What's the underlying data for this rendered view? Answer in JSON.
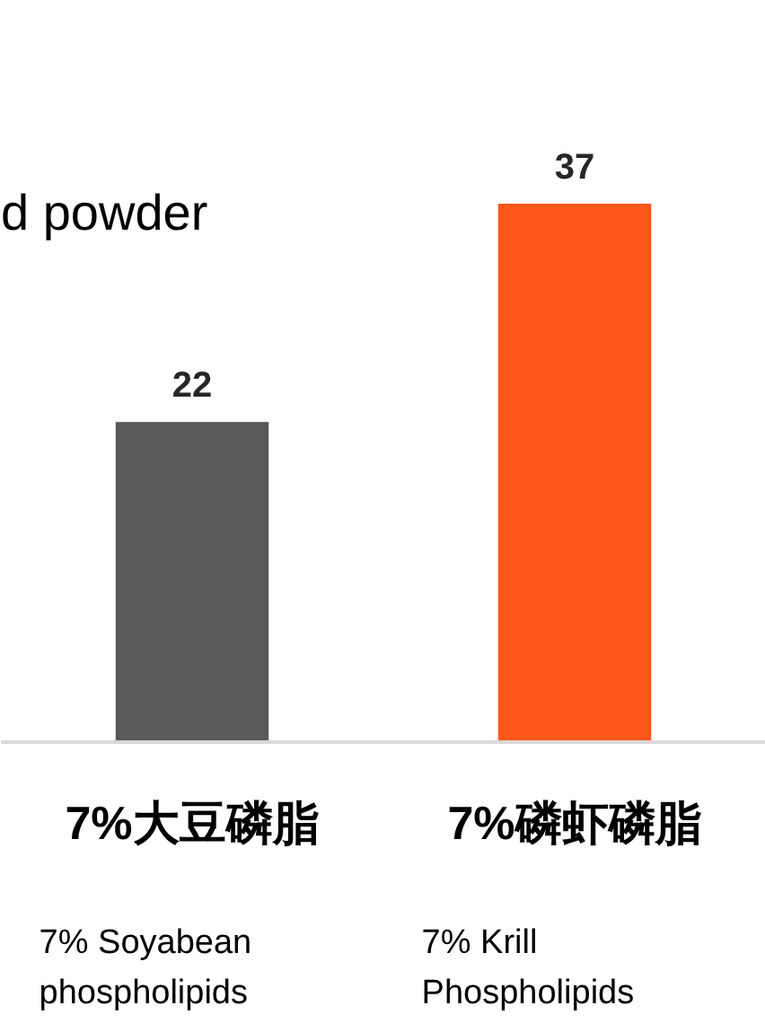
{
  "chart_data": {
    "type": "bar",
    "title": "d powder",
    "categories": [
      "7%大豆磷脂",
      "7%磷虾磷脂"
    ],
    "values": [
      22,
      37
    ],
    "colors": [
      "#595959",
      "#ff5719"
    ],
    "data_labels": true,
    "annotations": [
      "7% Soyabean\nphospholipids",
      "7% Krill\nPhospholipids"
    ]
  }
}
